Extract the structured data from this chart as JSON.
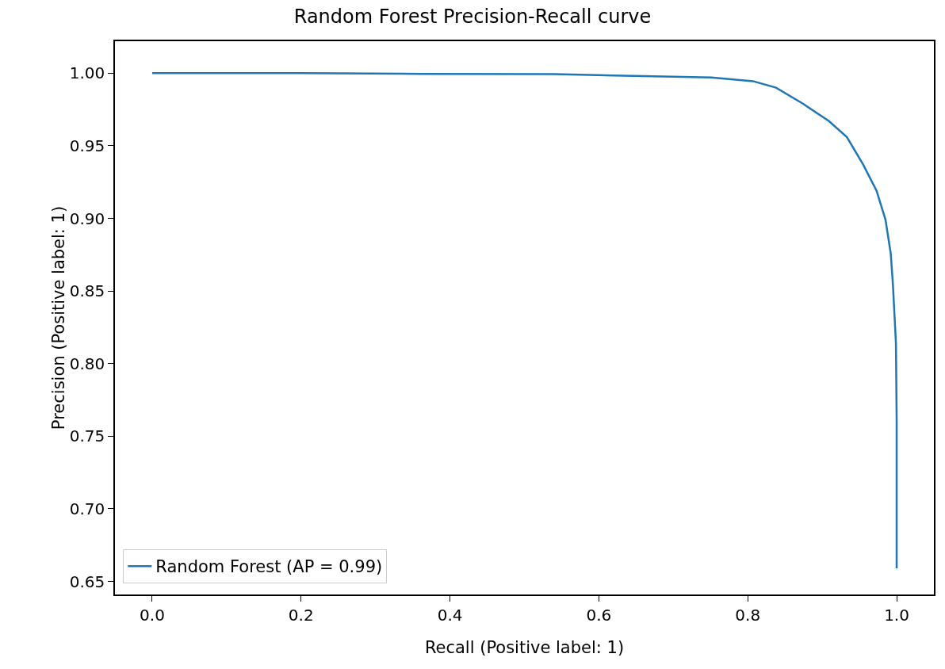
{
  "chart_data": {
    "type": "line",
    "title": "Random Forest Precision-Recall curve",
    "xlabel": "Recall (Positive label: 1)",
    "ylabel": "Precision (Positive label: 1)",
    "x": [
      0.0,
      0.2,
      0.36,
      0.54,
      0.66,
      0.751,
      0.807,
      0.838,
      0.874,
      0.909,
      0.933,
      0.955,
      0.973,
      0.985,
      0.992,
      0.995,
      0.999,
      1.0,
      1.0
    ],
    "series": [
      {
        "name": "Random Forest (AP = 0.99)",
        "color": "#1f77b4",
        "values": [
          1.0,
          1.0,
          0.9995,
          0.9993,
          0.998,
          0.997,
          0.9945,
          0.99,
          0.979,
          0.967,
          0.956,
          0.937,
          0.919,
          0.899,
          0.876,
          0.854,
          0.814,
          0.76,
          0.659
        ]
      }
    ],
    "xlim": [
      -0.05,
      1.05
    ],
    "ylim": [
      0.641,
      1.022
    ],
    "xticks": [
      {
        "value": 0,
        "label": "0.0"
      },
      0.2,
      0.4,
      0.6,
      0.8,
      {
        "value": 1,
        "label": "1.0"
      }
    ],
    "yticks": [
      0.65,
      {
        "value": 0.7,
        "label": "0.70"
      },
      0.75,
      {
        "value": 0.8,
        "label": "0.80"
      },
      0.85,
      {
        "value": 0.9,
        "label": "0.90"
      },
      0.95,
      {
        "value": 1,
        "label": "1.00"
      }
    ],
    "grid": false,
    "legend": "bottom left",
    "marker": "none",
    "line_style": "solid"
  }
}
